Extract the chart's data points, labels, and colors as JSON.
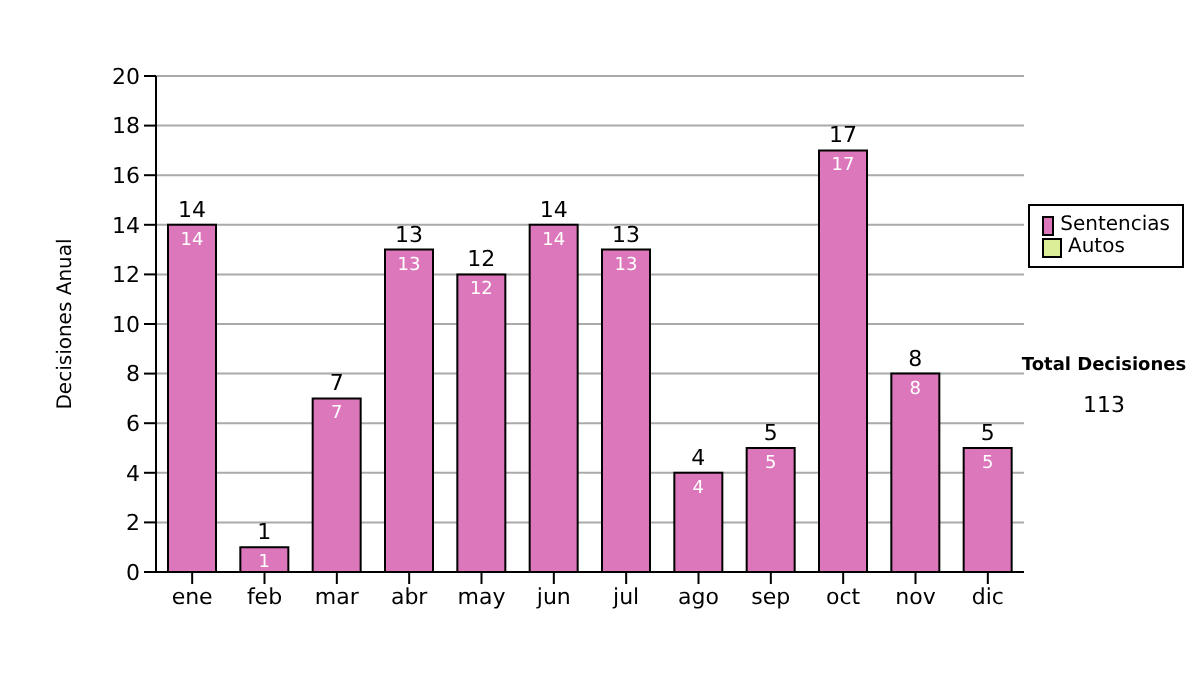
{
  "chart_data": {
    "type": "bar",
    "ylabel": "Decisiones Anual",
    "categories": [
      "ene",
      "feb",
      "mar",
      "abr",
      "may",
      "jun",
      "jul",
      "ago",
      "sep",
      "oct",
      "nov",
      "dic"
    ],
    "series": [
      {
        "name": "Sentencias",
        "color": "#dd77bb",
        "values": [
          14,
          1,
          7,
          13,
          12,
          14,
          13,
          4,
          5,
          17,
          8,
          5
        ]
      },
      {
        "name": "Autos",
        "color": "#ddee99",
        "values": [
          null,
          null,
          null,
          null,
          null,
          null,
          null,
          null,
          null,
          null,
          null,
          null
        ]
      }
    ],
    "stacked": true,
    "data_labels": true,
    "totals": [
      "14",
      "1",
      "7",
      "13",
      "12",
      "14",
      "13",
      "4",
      "5",
      "17",
      "8",
      "5"
    ],
    "ylim": [
      0,
      20
    ],
    "yticks": [
      0,
      2,
      4,
      6,
      8,
      10,
      12,
      14,
      16,
      18,
      20
    ],
    "grid": "y",
    "legend": "right",
    "annotations": [
      "Total Decisiones",
      "113"
    ]
  }
}
